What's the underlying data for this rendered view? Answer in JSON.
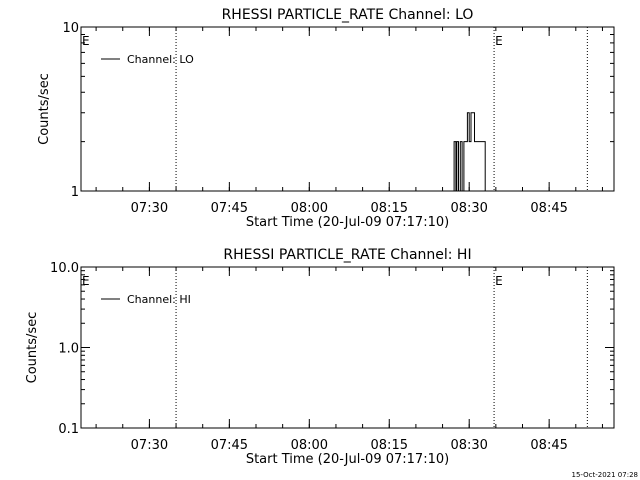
{
  "footer": {
    "timestamp": "15-Oct-2021 07:28"
  },
  "chart_data": [
    {
      "type": "line",
      "title": "RHESSI PARTICLE_RATE Channel: LO",
      "xlabel": "Start Time (20-Jul-09 07:17:10)",
      "ylabel": "Counts/sec",
      "yscale": "log",
      "ylim": [
        1,
        10
      ],
      "yticks": [
        1,
        10
      ],
      "ytick_labels": [
        "1",
        "10"
      ],
      "xlim": [
        "07:17:10",
        "08:57:10"
      ],
      "xticks": [
        "07:30",
        "07:45",
        "08:00",
        "08:15",
        "08:30",
        "08:45"
      ],
      "grid": false,
      "legend": {
        "position": "top-left",
        "entries": [
          "Channel: LO"
        ]
      },
      "markers": [
        {
          "label": "E",
          "time": "07:17:10"
        },
        {
          "label": "",
          "time": "07:35:00"
        },
        {
          "label": "E",
          "time": "08:34:40"
        },
        {
          "label": "",
          "time": "08:52:10"
        }
      ],
      "series": [
        {
          "name": "Channel: LO",
          "x": [
            "08:26:40",
            "08:27:10",
            "08:27:30",
            "08:27:40",
            "08:28:00",
            "08:28:20",
            "08:28:40",
            "08:29:00",
            "08:29:20",
            "08:29:40",
            "08:30:00",
            "08:30:20",
            "08:31:00",
            "08:32:00",
            "08:32:40",
            "08:33:00"
          ],
          "y": [
            1,
            2,
            1,
            2,
            1,
            2,
            1,
            2,
            2,
            3,
            2,
            3,
            2,
            2,
            2,
            1
          ]
        }
      ]
    },
    {
      "type": "line",
      "title": "RHESSI PARTICLE_RATE Channel: HI",
      "xlabel": "Start Time (20-Jul-09 07:17:10)",
      "ylabel": "Counts/sec",
      "yscale": "log",
      "ylim": [
        0.1,
        10
      ],
      "yticks": [
        0.1,
        1,
        10
      ],
      "ytick_labels": [
        "0.1",
        "1.0",
        "10.0"
      ],
      "xlim": [
        "07:17:10",
        "08:57:10"
      ],
      "xticks": [
        "07:30",
        "07:45",
        "08:00",
        "08:15",
        "08:30",
        "08:45"
      ],
      "grid": false,
      "legend": {
        "position": "top-left",
        "entries": [
          "Channel: HI"
        ]
      },
      "markers": [
        {
          "label": "E",
          "time": "07:17:10"
        },
        {
          "label": "",
          "time": "07:35:00"
        },
        {
          "label": "E",
          "time": "08:34:40"
        },
        {
          "label": "",
          "time": "08:52:10"
        }
      ],
      "series": [
        {
          "name": "Channel: HI",
          "x": [],
          "y": []
        }
      ]
    }
  ]
}
